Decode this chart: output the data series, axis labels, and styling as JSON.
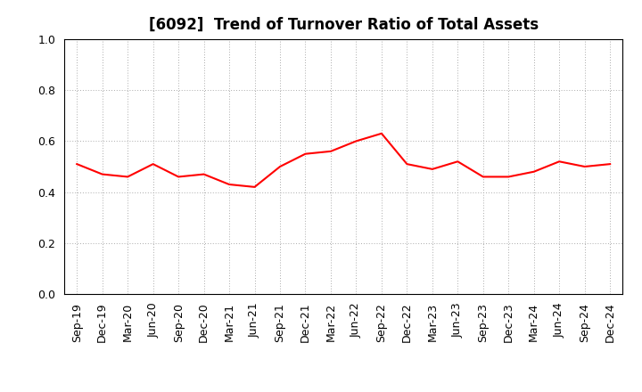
{
  "title": "[6092]  Trend of Turnover Ratio of Total Assets",
  "labels": [
    "Sep-19",
    "Dec-19",
    "Mar-20",
    "Jun-20",
    "Sep-20",
    "Dec-20",
    "Mar-21",
    "Jun-21",
    "Sep-21",
    "Dec-21",
    "Mar-22",
    "Jun-22",
    "Sep-22",
    "Dec-22",
    "Mar-23",
    "Jun-23",
    "Sep-23",
    "Dec-23",
    "Mar-24",
    "Jun-24",
    "Sep-24",
    "Dec-24"
  ],
  "values": [
    0.51,
    0.47,
    0.46,
    0.51,
    0.46,
    0.47,
    0.43,
    0.42,
    0.5,
    0.55,
    0.56,
    0.6,
    0.63,
    0.51,
    0.49,
    0.52,
    0.46,
    0.46,
    0.48,
    0.52,
    0.5,
    0.51
  ],
  "line_color": "#FF0000",
  "line_width": 1.5,
  "ylim": [
    0.0,
    1.0
  ],
  "yticks": [
    0.0,
    0.2,
    0.4,
    0.6,
    0.8,
    1.0
  ],
  "grid_color": "#aaaaaa",
  "bg_color": "#ffffff",
  "title_fontsize": 12,
  "tick_fontsize": 9,
  "title_color": "#000000",
  "title_fontweight": "bold"
}
